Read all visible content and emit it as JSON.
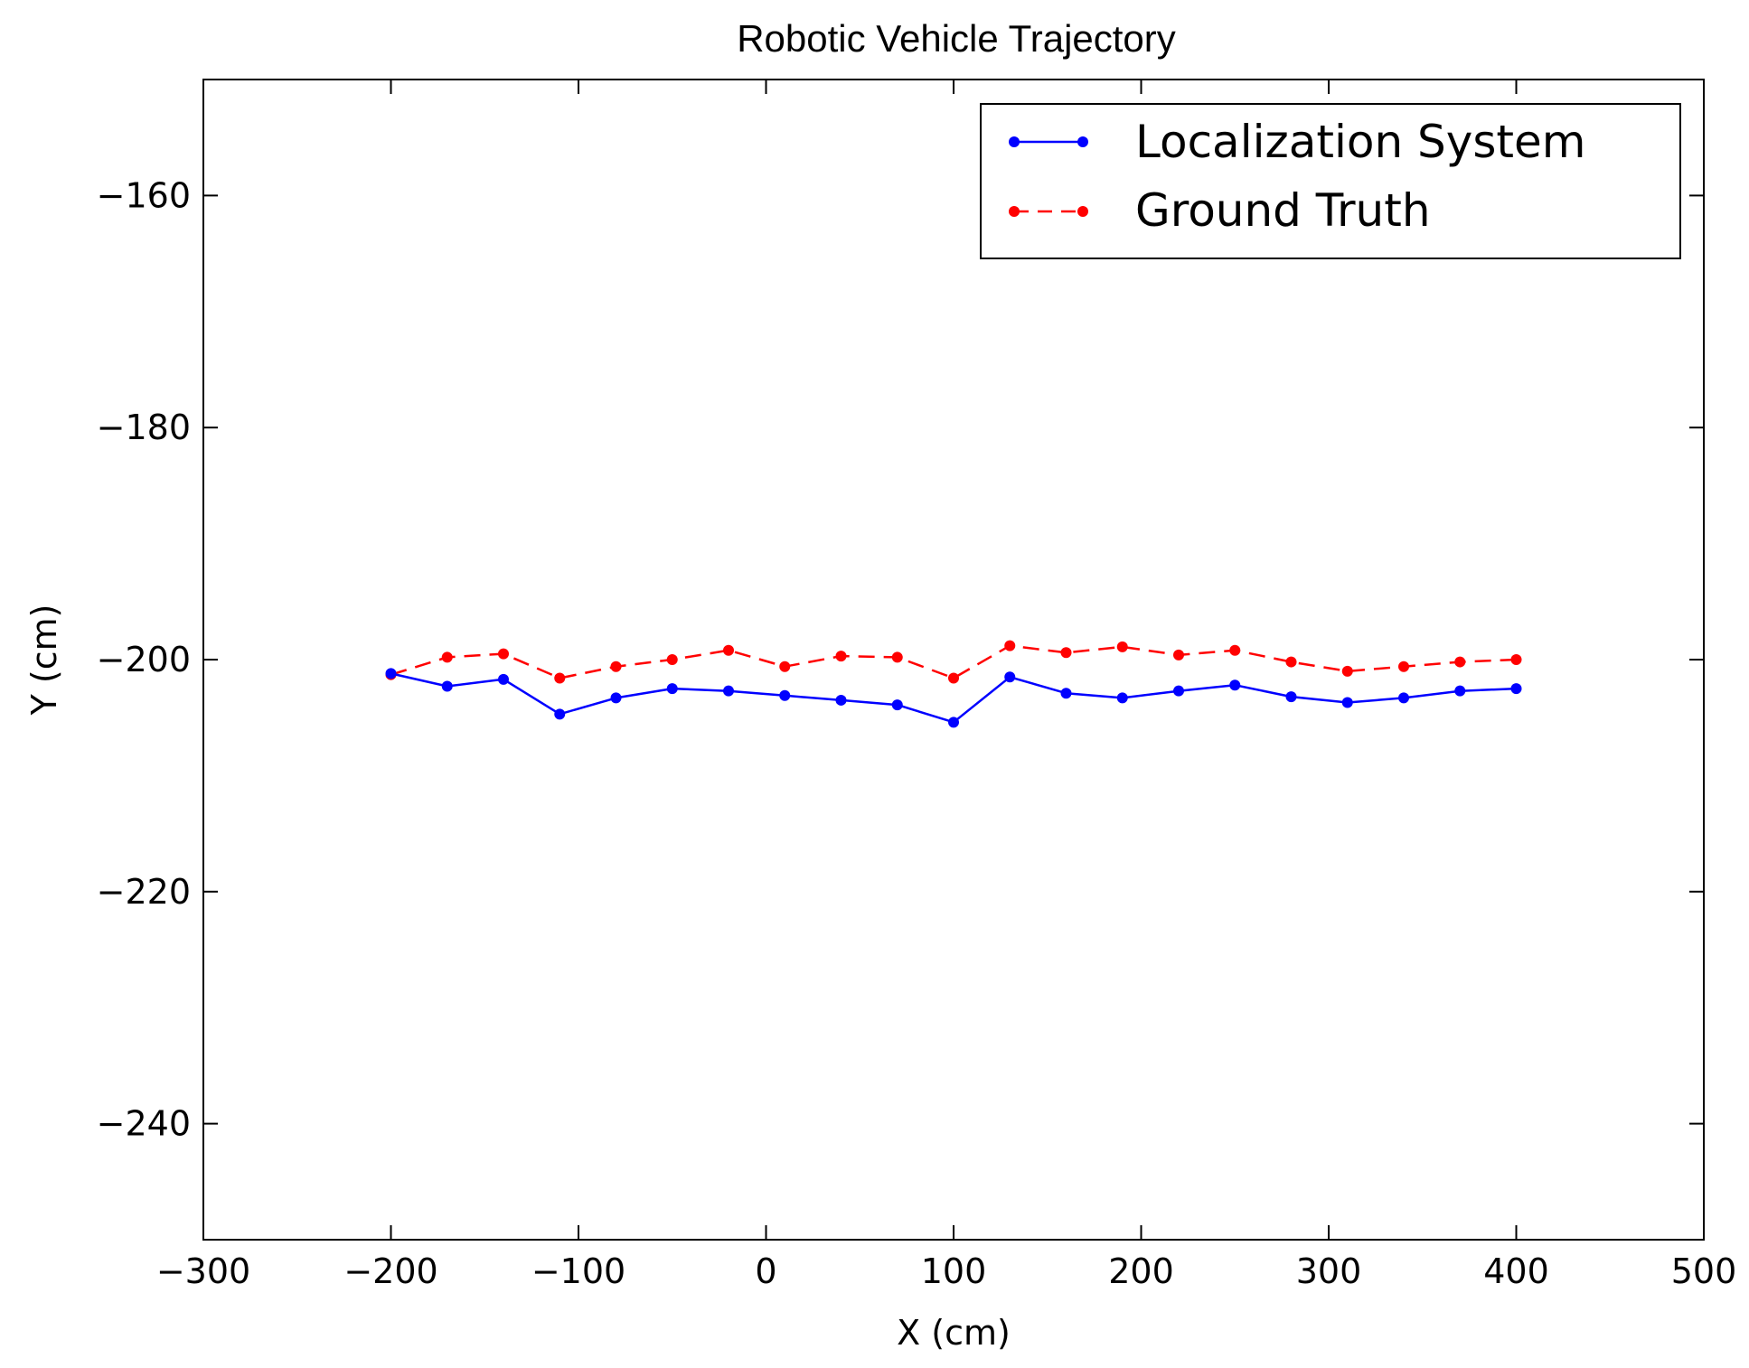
{
  "chart_data": {
    "type": "line",
    "title": "Robotic Vehicle Trajectory",
    "xlabel": "X (cm)",
    "ylabel": "Y (cm)",
    "xlim": [
      -300,
      500
    ],
    "ylim": [
      -250,
      -150
    ],
    "xticks": [
      -300,
      -200,
      -100,
      0,
      100,
      200,
      300,
      400,
      500
    ],
    "yticks": [
      -160,
      -180,
      -200,
      -220,
      -240
    ],
    "xtick_labels": [
      "−300",
      "−200",
      "−100",
      "0",
      "100",
      "200",
      "300",
      "400",
      "500"
    ],
    "ytick_labels": [
      "−160",
      "−180",
      "−200",
      "−220",
      "−240"
    ],
    "grid": false,
    "legend_position": "top-right",
    "series": [
      {
        "name": "Localization System",
        "color": "#0000ff",
        "style": "solid",
        "marker": "dot",
        "x": [
          -200,
          -170,
          -140,
          -110,
          -80,
          -50,
          -20,
          10,
          40,
          70,
          100,
          130,
          160,
          190,
          220,
          250,
          280,
          310,
          340,
          370,
          400
        ],
        "y": [
          -201.2,
          -202.3,
          -201.7,
          -204.7,
          -203.3,
          -202.5,
          -202.7,
          -203.1,
          -203.5,
          -203.9,
          -205.4,
          -201.5,
          -202.9,
          -203.3,
          -202.7,
          -202.2,
          -203.2,
          -203.7,
          -203.3,
          -202.7,
          -202.5
        ]
      },
      {
        "name": "Ground Truth",
        "color": "#ff0000",
        "style": "dashed",
        "marker": "dot",
        "x": [
          -200,
          -170,
          -140,
          -110,
          -80,
          -50,
          -20,
          10,
          40,
          70,
          100,
          130,
          160,
          190,
          220,
          250,
          280,
          310,
          340,
          370,
          400
        ],
        "y": [
          -201.3,
          -199.8,
          -199.5,
          -201.6,
          -200.6,
          -200.0,
          -199.2,
          -200.6,
          -199.7,
          -199.8,
          -201.6,
          -198.8,
          -199.4,
          -198.9,
          -199.6,
          -199.2,
          -200.2,
          -201.0,
          -200.6,
          -200.2,
          -200.0
        ]
      }
    ]
  }
}
